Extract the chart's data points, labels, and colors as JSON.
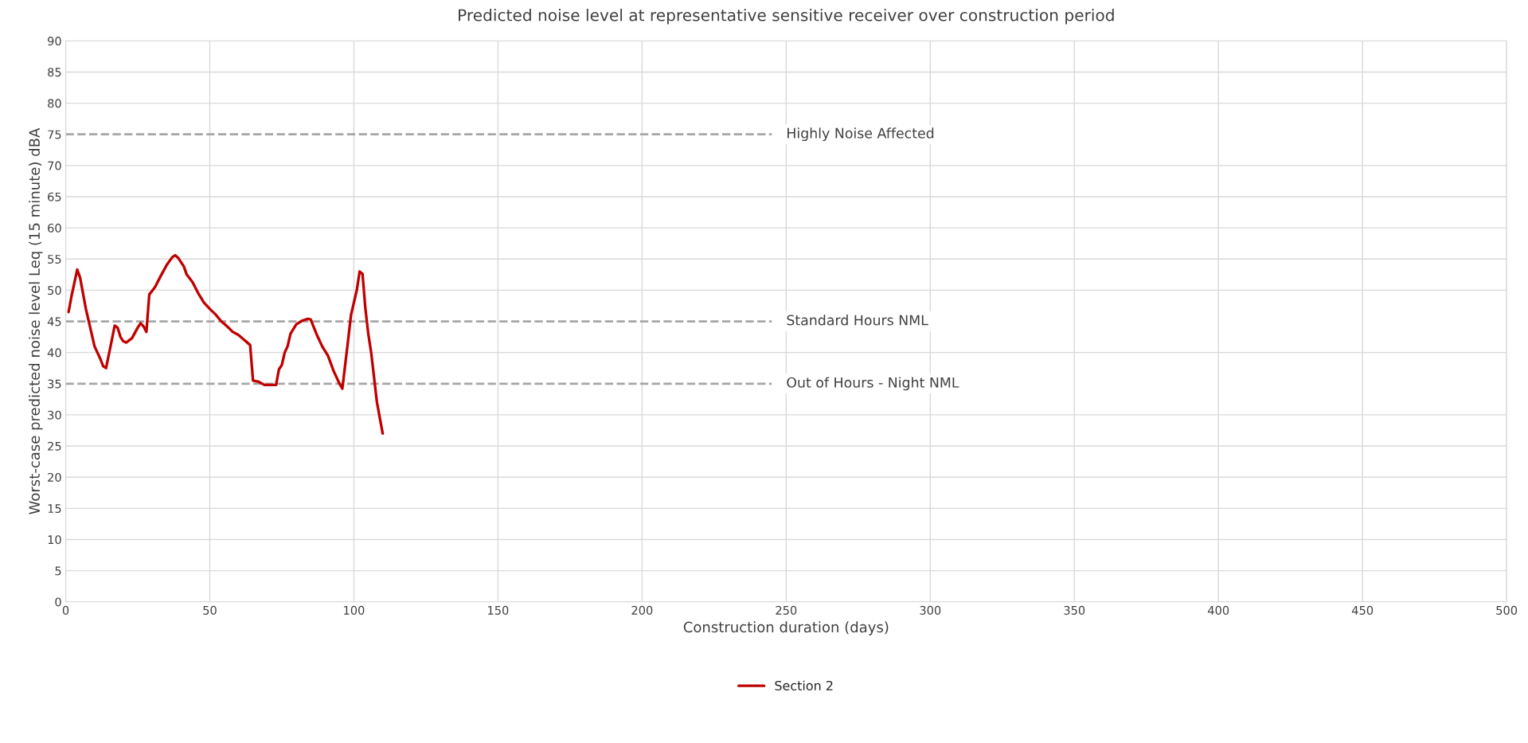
{
  "chart_data": {
    "type": "line",
    "title": "Predicted noise level at representative sensitive receiver over construction period",
    "xlabel": "Construction duration (days)",
    "ylabel": "Worst-case predicted noise level Leq (15 minute) dBA",
    "series": [
      {
        "name": "Section 2",
        "color": "#c00000",
        "x": [
          1,
          2,
          4,
          5,
          7,
          9,
          10,
          12,
          13,
          14,
          16,
          17,
          18,
          19,
          20,
          21,
          23,
          25,
          26,
          27,
          28,
          29,
          31,
          33,
          35,
          37,
          38,
          39,
          41,
          42,
          44,
          46,
          48,
          50,
          52,
          54,
          56,
          58,
          60,
          62,
          63,
          64,
          65,
          67,
          69,
          70,
          72,
          73,
          74,
          75,
          76,
          77,
          78,
          80,
          82,
          84,
          85,
          87,
          89,
          91,
          93,
          95,
          96,
          98,
          99,
          101,
          102,
          103,
          104,
          105,
          106,
          108,
          110
        ],
        "values": [
          46.5,
          49,
          53.3,
          52,
          47,
          43,
          41,
          39,
          37.8,
          37.5,
          42,
          44.3,
          44,
          42.5,
          41.8,
          41.6,
          42.3,
          44,
          44.7,
          44.2,
          43.3,
          49.3,
          50.5,
          52.3,
          54,
          55.3,
          55.6,
          55.2,
          53.8,
          52.5,
          51.3,
          49.5,
          48,
          47,
          46.1,
          45,
          44.2,
          43.3,
          42.8,
          42,
          41.6,
          41.2,
          35.5,
          35.3,
          34.8,
          34.8,
          34.8,
          34.8,
          37.3,
          38,
          40,
          41,
          43,
          44.5,
          45.1,
          45.4,
          45.3,
          43,
          41,
          39.5,
          37,
          35,
          34.2,
          42,
          46,
          50,
          53,
          52.6,
          47,
          43,
          40,
          32,
          27
        ]
      }
    ],
    "xlim": [
      0,
      500
    ],
    "xticks": [
      0,
      50,
      100,
      150,
      200,
      250,
      300,
      350,
      400,
      450,
      500
    ],
    "ylim": [
      0,
      90
    ],
    "yticks": [
      0,
      5,
      10,
      15,
      20,
      25,
      30,
      35,
      40,
      45,
      50,
      55,
      60,
      65,
      70,
      75,
      80,
      85,
      90
    ],
    "ref_lines": [
      {
        "axis": "y",
        "value": 75,
        "label": "Highly Noise Affected",
        "color": "#a6a6a6",
        "line_style": "dashed"
      },
      {
        "axis": "y",
        "value": 45,
        "label": "Standard Hours NML",
        "color": "#a6a6a6",
        "line_style": "dashed"
      },
      {
        "axis": "y",
        "value": 35,
        "label": "Out of Hours - Night NML",
        "color": "#a6a6a6",
        "line_style": "dashed"
      }
    ],
    "grid": true,
    "legend": "bottom",
    "marker": "none",
    "line_style": "solid"
  }
}
